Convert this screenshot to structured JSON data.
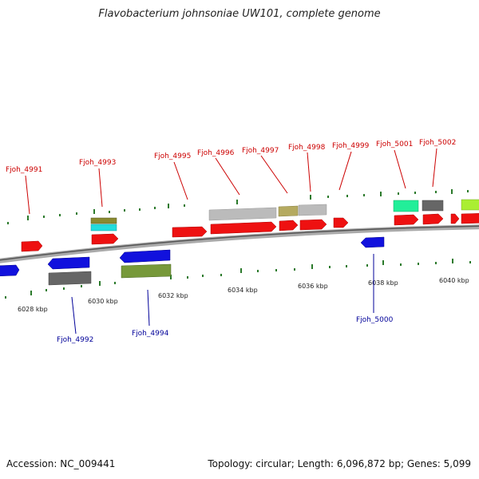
{
  "title": "Flavobacterium johnsoniae UW101, complete genome",
  "footer": {
    "accession_label": "Accession:",
    "accession": "NC_009441",
    "topology_label": "Topology:",
    "topology": "circular",
    "length_label": "Length:",
    "length": "6,096,872 bp",
    "genes_label": "Genes:",
    "genes": "5,099"
  },
  "colors": {
    "red_gene": "#ee1111",
    "blue_gene": "#1111dd",
    "gray_gene": "#bbbbbb",
    "dark_gray_gene": "#666666",
    "olive_gene": "#b5aa60",
    "green_gene": "#77993a",
    "teal_gene": "#22dddd",
    "mint_gene": "#22ee99",
    "lime_gene": "#aaee33",
    "tick": "#2b7a2b",
    "label_top": "#cc0000",
    "label_bottom": "#000099",
    "backbone": "#888888"
  },
  "scale_labels": [
    "6028 kbp",
    "6030 kbp",
    "6032 kbp",
    "6034 kbp",
    "6036 kbp",
    "6038 kbp",
    "6040 kbp"
  ],
  "top_labels": [
    "Fjoh_4991",
    "Fjoh_4993",
    "Fjoh_4995",
    "Fjoh_4996",
    "Fjoh_4997",
    "Fjoh_4998",
    "Fjoh_4999",
    "Fjoh_5001",
    "Fjoh_5002"
  ],
  "bottom_labels": [
    "Fjoh_4992",
    "Fjoh_4994",
    "Fjoh_5000"
  ]
}
